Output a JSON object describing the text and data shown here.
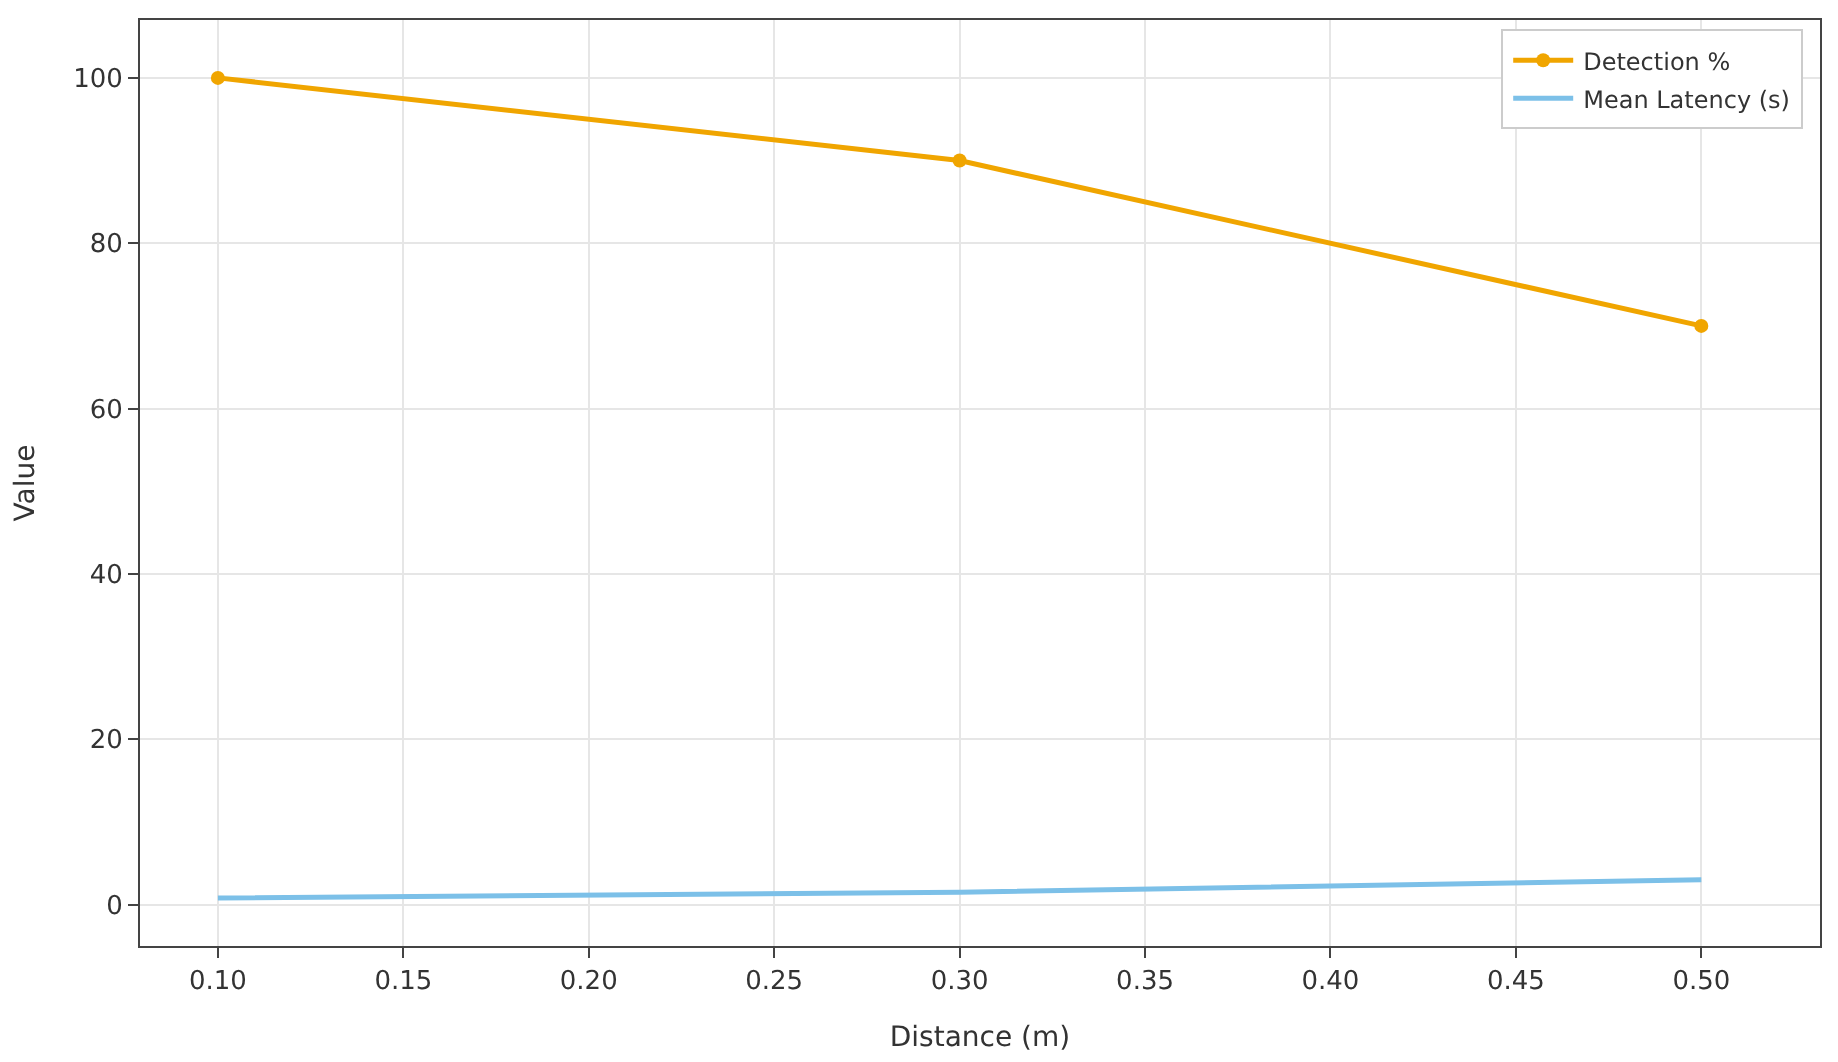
{
  "chart_data": {
    "type": "line",
    "xlabel": "Distance (m)",
    "ylabel": "Value",
    "x": [
      0.1,
      0.3,
      0.5
    ],
    "series": [
      {
        "name": "Detection %",
        "color": "#f0a500",
        "values": [
          100,
          90,
          70
        ],
        "marker": "circle"
      },
      {
        "name": "Mean Latency (s)",
        "color": "#7cc0e8",
        "values": [
          0.8,
          1.5,
          3.0
        ],
        "marker": "none"
      }
    ],
    "xlim": [
      0.079,
      0.532
    ],
    "ylim": [
      -5,
      107
    ],
    "xticks": [
      {
        "value": 0.1,
        "label": "0.10"
      },
      {
        "value": 0.15,
        "label": "0.15"
      },
      {
        "value": 0.2,
        "label": "0.20"
      },
      {
        "value": 0.25,
        "label": "0.25"
      },
      {
        "value": 0.3,
        "label": "0.30"
      },
      {
        "value": 0.35,
        "label": "0.35"
      },
      {
        "value": 0.4,
        "label": "0.40"
      },
      {
        "value": 0.45,
        "label": "0.45"
      },
      {
        "value": 0.5,
        "label": "0.50"
      }
    ],
    "yticks": [
      0,
      20,
      40,
      60,
      80,
      100
    ],
    "grid": true,
    "legend": "top right",
    "line_style": "solid"
  }
}
